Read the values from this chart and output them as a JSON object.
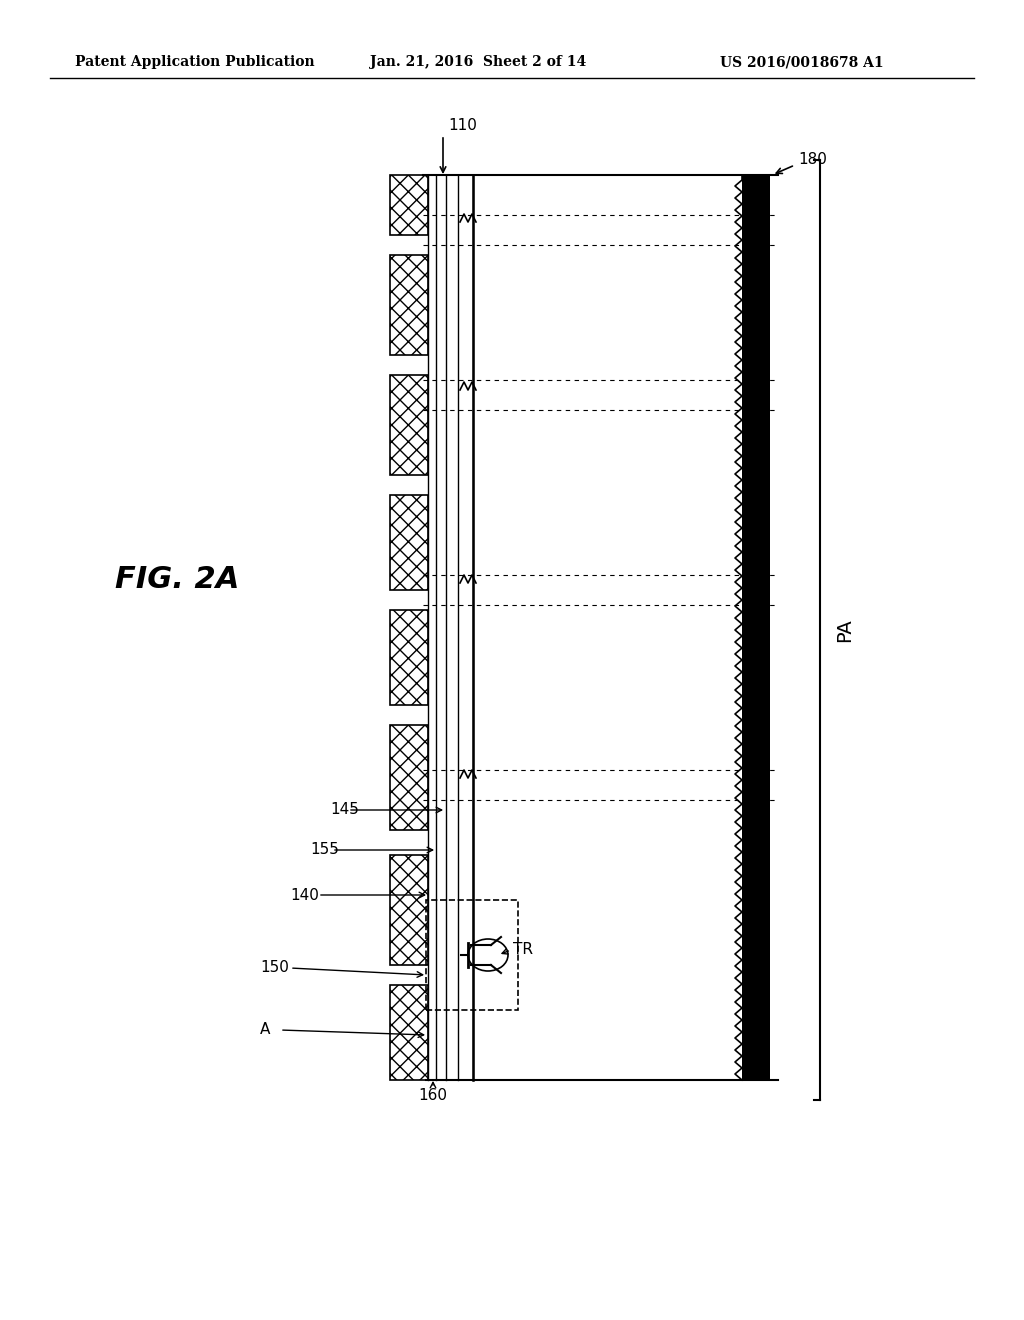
{
  "bg_color": "#ffffff",
  "header_left": "Patent Application Publication",
  "header_mid": "Jan. 21, 2016  Sheet 2 of 14",
  "header_right": "US 2016/0018678 A1",
  "fig_label": "FIG. 2A",
  "label_110": "110",
  "label_180": "180",
  "label_PA": "PA",
  "label_145": "145",
  "label_155": "155",
  "label_140": "140",
  "label_150": "150",
  "label_TR": "TR",
  "label_A": "A",
  "label_160": "160"
}
